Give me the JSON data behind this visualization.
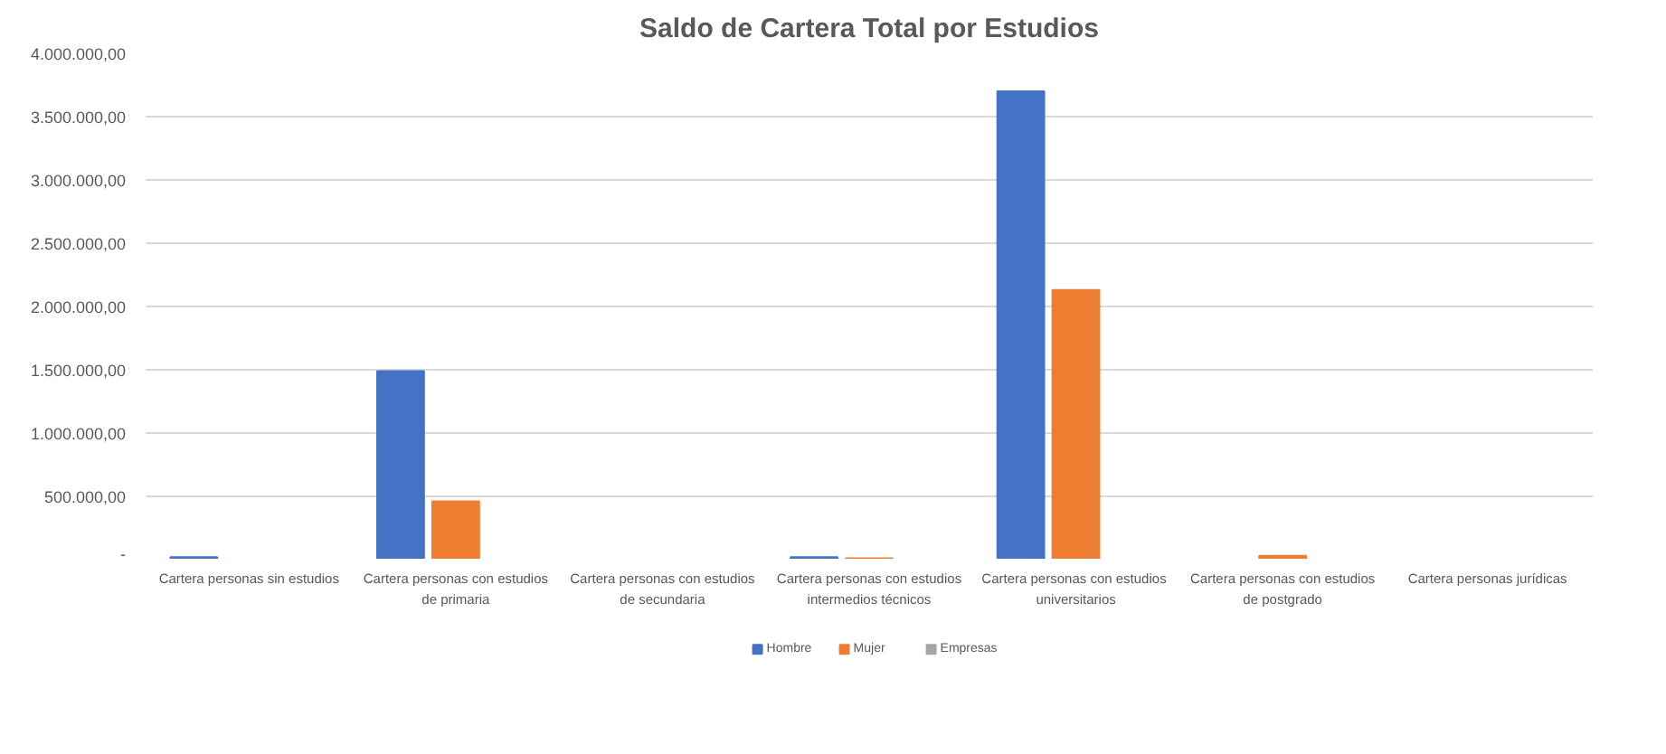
{
  "chart_data": {
    "type": "bar",
    "title": "Saldo de Cartera Total por Estudios",
    "categories": [
      "Cartera personas sin estudios",
      "Cartera personas con estudios de primaria",
      "Cartera personas con estudios de secundaria",
      "Cartera personas con estudios intermedios técnicos",
      "Cartera  personas con estudios universitarios",
      "Cartera personas con estudios de postgrado",
      "Cartera  personas jurídicas"
    ],
    "series": [
      {
        "name": "Hombre",
        "color": "#4472c4",
        "values": [
          20000,
          1490000,
          0,
          20000,
          3700000,
          0,
          0
        ]
      },
      {
        "name": "Mujer",
        "color": "#ed7d31",
        "values": [
          0,
          460000,
          0,
          10000,
          2130000,
          30000,
          0
        ]
      },
      {
        "name": "Empresas",
        "color": "#a5a5a5",
        "values": [
          0,
          0,
          0,
          0,
          0,
          0,
          0
        ]
      }
    ],
    "ylim": [
      0,
      4000000
    ],
    "yticks": [
      {
        "value": 0,
        "label": "-"
      },
      {
        "value": 500000,
        "label": "500.000,00"
      },
      {
        "value": 1000000,
        "label": "1.000.000,00"
      },
      {
        "value": 1500000,
        "label": "1.500.000,00"
      },
      {
        "value": 2000000,
        "label": "2.000.000,00"
      },
      {
        "value": 2500000,
        "label": "2.500.000,00"
      },
      {
        "value": 3000000,
        "label": "3.000.000,00"
      },
      {
        "value": 3500000,
        "label": "3.500.000,00"
      },
      {
        "value": 4000000,
        "label": "4.000.000,00"
      }
    ],
    "grid": "y",
    "legend": "bottom"
  }
}
